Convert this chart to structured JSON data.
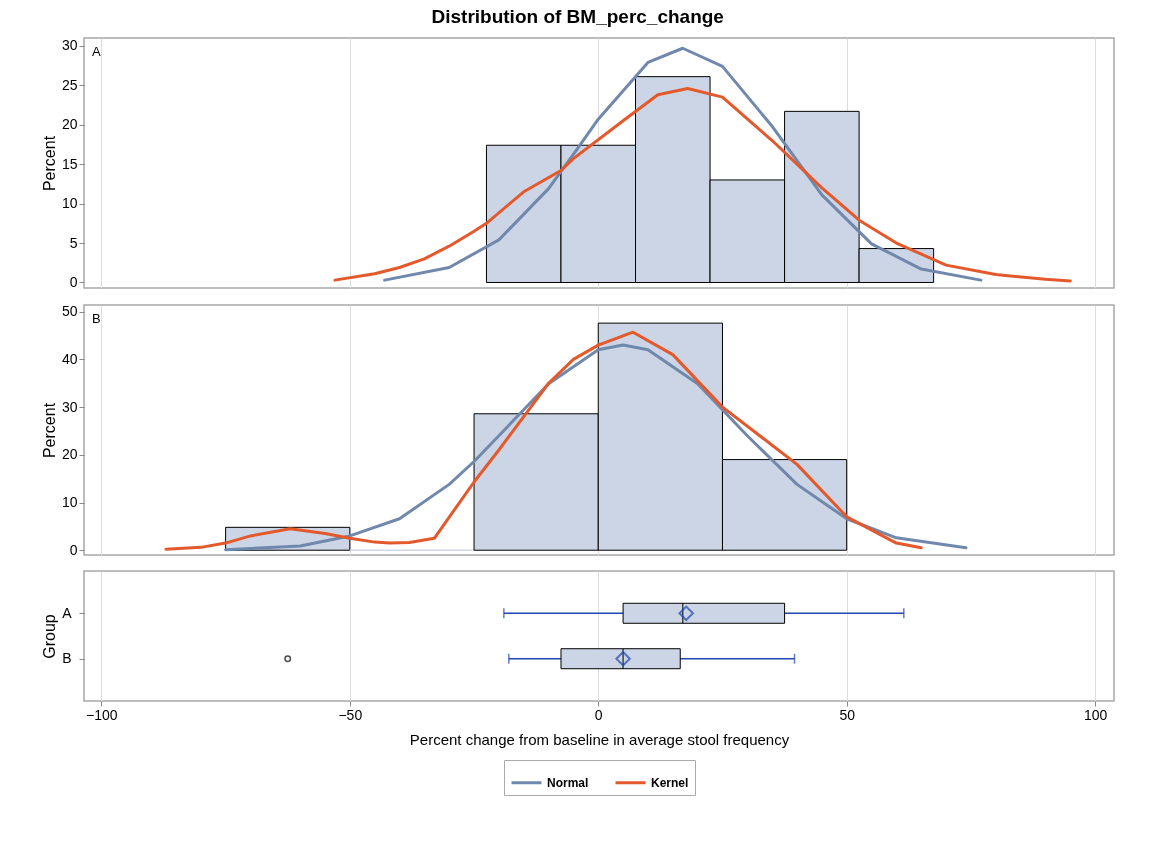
{
  "chart_data": [
    {
      "type": "histogram",
      "title": "Distribution of BM_perc_change",
      "ylabel": "Percent",
      "annotations": [
        "A"
      ],
      "bins": [
        -22.5,
        -7.5,
        7.5,
        22.5,
        37.5,
        52.5,
        67.5
      ],
      "xlim": [
        -103.5,
        103.8
      ],
      "xticks": [
        -100,
        -50,
        0,
        50,
        100
      ],
      "ylim": [
        -0.7,
        31
      ],
      "yticks": [
        0,
        5,
        10,
        15,
        20,
        25,
        30
      ],
      "grid": "x",
      "tick_labels": "y",
      "legend": "bottom",
      "series": [
        {
          "type": "histogram",
          "color": "#cbd5e5",
          "values": [
            17.4,
            17.4,
            26.1,
            13.0,
            21.7,
            4.3
          ]
        },
        {
          "type": "line",
          "name": "Normal",
          "color": "#7188ad",
          "x": [
            -43,
            -30,
            -20,
            -10,
            -4.5,
            0,
            10,
            17,
            25,
            35,
            45,
            55,
            65,
            77
          ],
          "values": [
            0.3,
            1.9,
            5.4,
            11.9,
            16.7,
            20.7,
            27.9,
            29.7,
            27.4,
            19.8,
            11.1,
            4.9,
            1.7,
            0.3
          ]
        },
        {
          "type": "line",
          "name": "Kernel",
          "color": "#e4592b",
          "x": [
            -53,
            -45,
            -40,
            -35,
            -30,
            -25,
            -22.5,
            -15,
            -7.5,
            -5,
            5,
            12,
            18,
            25,
            35,
            45,
            52.5,
            60,
            70,
            80,
            90,
            95
          ],
          "values": [
            0.3,
            1.1,
            1.9,
            3.0,
            4.6,
            6.5,
            7.5,
            11.5,
            14.2,
            15.7,
            20.5,
            23.8,
            24.6,
            23.5,
            18,
            12,
            7.9,
            5,
            2.2,
            1.0,
            0.4,
            0.2
          ]
        }
      ]
    },
    {
      "type": "histogram",
      "ylabel": "Percent",
      "annotations": [
        "B"
      ],
      "bins": [
        -75,
        -50,
        -25,
        0,
        25,
        50
      ],
      "xlim": [
        -103.5,
        103.8
      ],
      "xticks": [
        -100,
        -50,
        0,
        50,
        100
      ],
      "ylim": [
        -1,
        51.4
      ],
      "yticks": [
        0,
        10,
        20,
        30,
        40,
        50
      ],
      "grid": "x",
      "tick_labels": "y",
      "legend": "bottom",
      "series": [
        {
          "type": "histogram",
          "color": "#cbd5e5",
          "values": [
            4.8,
            0,
            28.6,
            47.6,
            19.0
          ]
        },
        {
          "type": "line",
          "name": "Normal",
          "color": "#7188ad",
          "x": [
            -75,
            -60,
            -50,
            -40,
            -30,
            -25,
            -20,
            -10,
            0,
            5,
            10,
            20,
            30,
            40,
            50,
            60,
            74
          ],
          "values": [
            0.1,
            0.9,
            3,
            6.6,
            13.8,
            18.6,
            24,
            34.9,
            42,
            43,
            42,
            34.9,
            24,
            13.8,
            6.6,
            2.6,
            0.5
          ]
        },
        {
          "type": "line",
          "name": "Kernel",
          "color": "#e4592b",
          "x": [
            -87,
            -80,
            -75,
            -70,
            -62,
            -55,
            -50,
            -45,
            -42,
            -38,
            -33,
            -25,
            -20,
            -15,
            -10,
            -5,
            0,
            7,
            15,
            25,
            35,
            40,
            50,
            60,
            65
          ],
          "values": [
            0.2,
            0.6,
            1.5,
            3,
            4.5,
            3.5,
            2.5,
            1.7,
            1.5,
            1.6,
            2.5,
            14.3,
            21,
            28,
            35,
            40,
            43,
            45.7,
            41,
            30,
            22,
            18,
            7,
            1.5,
            0.5
          ]
        }
      ]
    },
    {
      "type": "box",
      "orientation": "horizontal",
      "xlabel": "Percent change from baseline in average stool frequency",
      "ylabel": "Group",
      "categories": [
        "A",
        "B"
      ],
      "xlim": [
        -103.5,
        103.8
      ],
      "xticks": [
        -100,
        -50,
        0,
        50,
        100
      ],
      "grid": "x",
      "color": "#cbd5e5",
      "boxes": [
        {
          "low": -19,
          "q1": 5,
          "median": 17,
          "q3": 37.5,
          "high": 61.5,
          "mean": 17.7
        },
        {
          "low": -18,
          "q1": -7.5,
          "median": 5,
          "q3": 16.5,
          "high": 39.5,
          "mean": 5,
          "outliers": [
            -62.5
          ]
        }
      ]
    }
  ]
}
